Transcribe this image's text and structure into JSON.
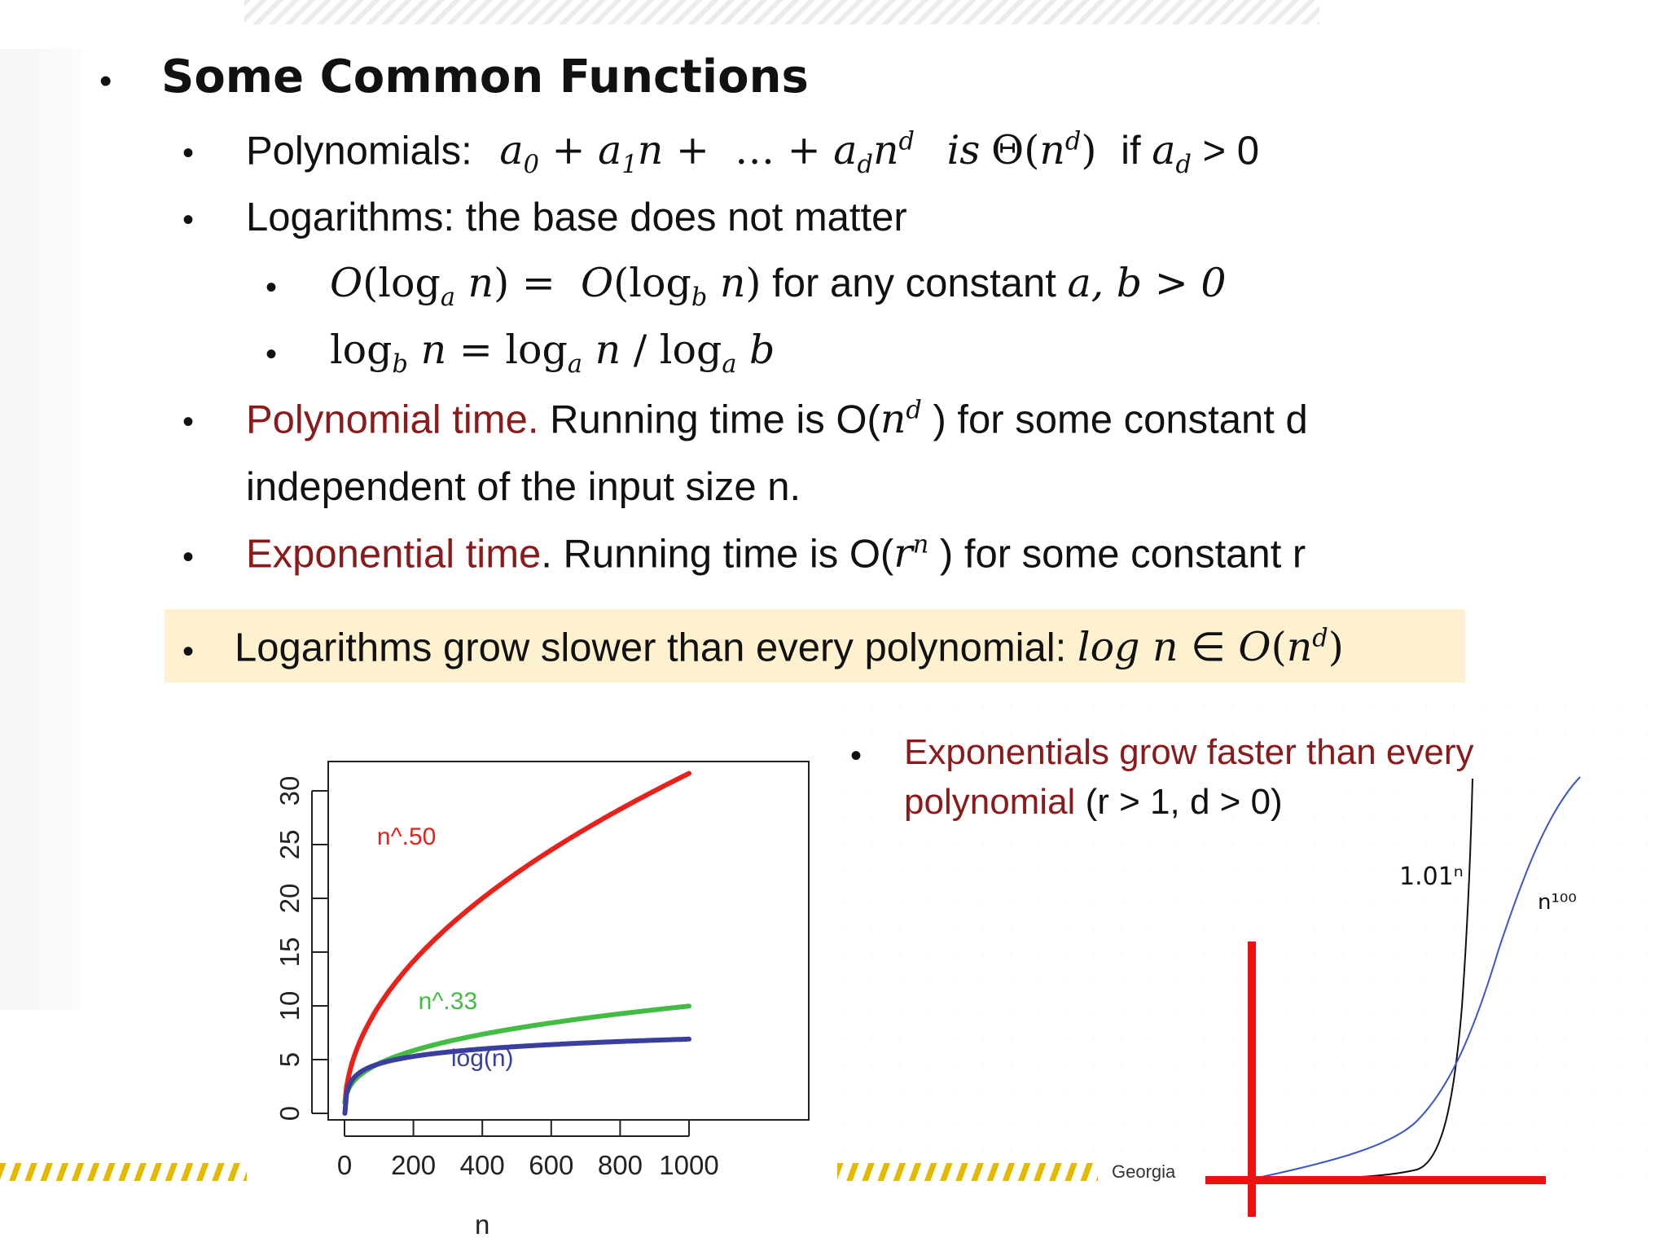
{
  "slide": {
    "title": "Some Common Functions",
    "poly_label": "Polynomials:",
    "poly_expr": "a₀ + a₁n +  … + a_d n^d",
    "poly_is": "is",
    "poly_theta": "Θ(n^d)",
    "poly_if": "if",
    "poly_cond_rhs": "> 0",
    "log_line": "Logarithms: the base does not matter",
    "log_sub1_rhs_text": "for any constant",
    "log_sub1_cond": "a, b > 0",
    "polytime_red": "Polynomial time.",
    "polytime_text_a": "Running time is O(",
    "polytime_text_b": ") for some constant d",
    "polytime_text_c": "independent of the input size n.",
    "exptime_red": "Exponential time",
    "exptime_text_a": ". Running time is O(",
    "exptime_text_b": ") for some constant r",
    "highlight_text": "Logarithms grow slower than every polynomial:",
    "exp_note_red_1": "Exponentials grow faster than every",
    "exp_note_red_2": "polynomial",
    "exp_note_black": "(r > 1, d > 0)",
    "footer_text": "Georgia"
  },
  "chart_data": [
    {
      "type": "line",
      "xlabel": "n",
      "ylabel": "",
      "xlim": [
        0,
        1000
      ],
      "ylim": [
        0,
        32
      ],
      "xticks": [
        0,
        200,
        400,
        600,
        800,
        1000
      ],
      "yticks": [
        0,
        5,
        10,
        15,
        20,
        25,
        30
      ],
      "series": [
        {
          "name": "n^.50",
          "color": "#e8221b",
          "fn": "pow",
          "p": 0.5
        },
        {
          "name": "n^.33",
          "color": "#44bb44",
          "fn": "pow",
          "p": 0.333
        },
        {
          "name": "log(n)",
          "color": "#3a3f9e",
          "fn": "log"
        }
      ]
    },
    {
      "type": "line",
      "series": [
        {
          "name": "1.01ⁿ",
          "color": "#111111"
        },
        {
          "name": "n¹⁰⁰",
          "color": "#3a55d0"
        }
      ]
    }
  ]
}
